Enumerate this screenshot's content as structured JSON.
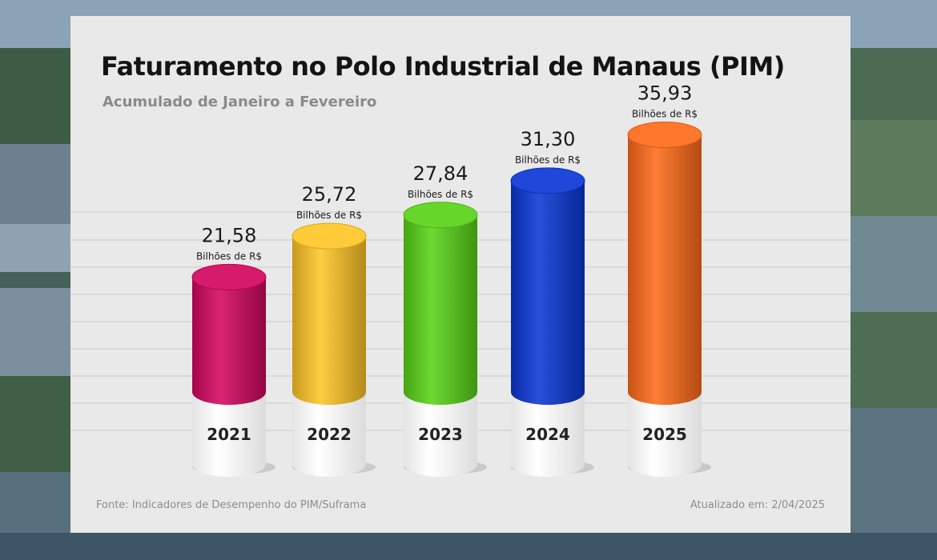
{
  "header": {
    "title": "Faturamento no Polo Industrial de Manaus (PIM)",
    "subtitle": "Acumulado de Janeiro a Fevereiro"
  },
  "footer": {
    "source": "Fonte: Indicadores de Desempenho do PIM/Suframa",
    "updated": "Atualizado em: 2/04/2025"
  },
  "chart_data": {
    "type": "bar",
    "title": "Faturamento no Polo Industrial de Manaus (PIM)",
    "subtitle": "Acumulado de Janeiro a Fevereiro",
    "categories": [
      "2021",
      "2022",
      "2023",
      "2024",
      "2025"
    ],
    "values": [
      21.58,
      25.72,
      27.84,
      31.3,
      35.93
    ],
    "value_labels": [
      "21,58",
      "25,72",
      "27,84",
      "31,30",
      "35,93"
    ],
    "unit_label": "Bilhões de R$",
    "colors": [
      "#d4075f",
      "#ffc627",
      "#59d417",
      "#0b37d6",
      "#ff6b1a"
    ],
    "grid": true,
    "legend": "none"
  }
}
